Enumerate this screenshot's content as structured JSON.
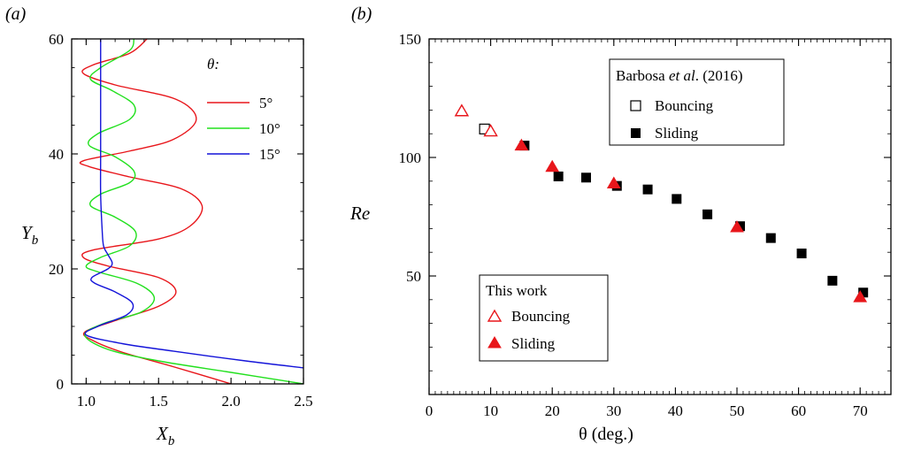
{
  "chart_data": [
    {
      "type": "line",
      "panel_label": "(a)",
      "xlabel": "X",
      "xlabel_sub": "b",
      "ylabel": "Y",
      "ylabel_sub": "b",
      "xlim": [
        0.9,
        2.5
      ],
      "ylim": [
        0,
        60
      ],
      "xticks": [
        "1.0",
        "1.5",
        "2.0",
        "2.5"
      ],
      "yticks": [
        "0",
        "20",
        "40",
        "60"
      ],
      "legend_title": "θ:",
      "legend_position": "top-right",
      "series": [
        {
          "name": "5°",
          "color": "#e8161b",
          "points": [
            [
              2.0,
              0
            ],
            [
              1.6,
              3
            ],
            [
              1.25,
              5.5
            ],
            [
              1.05,
              7.5
            ],
            [
              0.99,
              9
            ],
            [
              1.2,
              11
            ],
            [
              1.5,
              13.5
            ],
            [
              1.62,
              16
            ],
            [
              1.5,
              18.5
            ],
            [
              1.15,
              20.5
            ],
            [
              0.98,
              22
            ],
            [
              1.05,
              23.3
            ],
            [
              1.5,
              25.2
            ],
            [
              1.72,
              27.5
            ],
            [
              1.8,
              31
            ],
            [
              1.65,
              34
            ],
            [
              1.3,
              36
            ],
            [
              1.02,
              37.8
            ],
            [
              0.98,
              38.8
            ],
            [
              1.3,
              40.5
            ],
            [
              1.6,
              42.5
            ],
            [
              1.76,
              46
            ],
            [
              1.62,
              49.5
            ],
            [
              1.2,
              52
            ],
            [
              0.98,
              54
            ],
            [
              1.05,
              55.5
            ],
            [
              1.3,
              57.5
            ],
            [
              1.42,
              60
            ]
          ]
        },
        {
          "name": "10°",
          "color": "#22e01e",
          "points": [
            [
              2.5,
              0
            ],
            [
              2.0,
              2
            ],
            [
              1.5,
              4
            ],
            [
              1.15,
              6
            ],
            [
              0.99,
              8.5
            ],
            [
              1.12,
              10.5
            ],
            [
              1.38,
              12.5
            ],
            [
              1.47,
              15
            ],
            [
              1.35,
              17.5
            ],
            [
              1.08,
              19.5
            ],
            [
              1.0,
              20.5
            ],
            [
              1.1,
              22
            ],
            [
              1.3,
              24
            ],
            [
              1.34,
              26.5
            ],
            [
              1.2,
              29
            ],
            [
              1.03,
              31
            ],
            [
              1.1,
              33
            ],
            [
              1.3,
              35
            ],
            [
              1.33,
              37
            ],
            [
              1.2,
              39.5
            ],
            [
              1.02,
              41.5
            ],
            [
              1.08,
              43.5
            ],
            [
              1.3,
              46
            ],
            [
              1.33,
              48.5
            ],
            [
              1.18,
              51
            ],
            [
              1.03,
              53
            ],
            [
              1.1,
              55
            ],
            [
              1.3,
              58
            ],
            [
              1.33,
              60
            ]
          ]
        },
        {
          "name": "15°",
          "color": "#1414d9",
          "points": [
            [
              2.5,
              2.8
            ],
            [
              2.1,
              4
            ],
            [
              1.6,
              5.7
            ],
            [
              1.25,
              7
            ],
            [
              1.0,
              8.5
            ],
            [
              1.08,
              10
            ],
            [
              1.28,
              12
            ],
            [
              1.32,
              14
            ],
            [
              1.2,
              16
            ],
            [
              1.06,
              17.5
            ],
            [
              1.04,
              18.5
            ],
            [
              1.15,
              20
            ],
            [
              1.18,
              21
            ],
            [
              1.15,
              22.5
            ],
            [
              1.12,
              24
            ],
            [
              1.11,
              27
            ],
            [
              1.1,
              33
            ],
            [
              1.1,
              40
            ],
            [
              1.1,
              50
            ],
            [
              1.1,
              60
            ]
          ]
        }
      ]
    },
    {
      "type": "scatter",
      "panel_label": "(b)",
      "xlabel": "θ (deg.)",
      "ylabel": "Re",
      "xlim": [
        0,
        75
      ],
      "ylim": [
        0,
        150
      ],
      "xticks": [
        "0",
        "10",
        "20",
        "30",
        "40",
        "50",
        "60",
        "70"
      ],
      "yticks": [
        "50",
        "100",
        "150"
      ],
      "legend_barbosa": {
        "title_prefix": "Barbosa ",
        "title_italic": "et al",
        "title_suffix": ". (2016)",
        "entries": [
          "Bouncing",
          "Sliding"
        ]
      },
      "legend_thiswork": {
        "title": "This work",
        "entries": [
          "Bouncing",
          "Sliding"
        ]
      },
      "series": [
        {
          "name": "Barbosa et al. (2016) Bouncing",
          "marker": "open-square",
          "color": "#000000",
          "points": [
            [
              9,
              112
            ]
          ]
        },
        {
          "name": "Barbosa et al. (2016) Sliding",
          "marker": "filled-square",
          "color": "#000000",
          "points": [
            [
              15.5,
              105
            ],
            [
              21,
              92
            ],
            [
              25.5,
              91.5
            ],
            [
              30.5,
              88
            ],
            [
              35.5,
              86.5
            ],
            [
              40.2,
              82.5
            ],
            [
              45.2,
              76
            ],
            [
              50.5,
              71
            ],
            [
              55.5,
              66
            ],
            [
              60.5,
              59.5
            ],
            [
              65.5,
              48
            ],
            [
              70.5,
              43
            ]
          ]
        },
        {
          "name": "This work Bouncing",
          "marker": "open-triangle",
          "color": "#e8161b",
          "points": [
            [
              5.3,
              119.5
            ],
            [
              10,
              111
            ]
          ]
        },
        {
          "name": "This work Sliding",
          "marker": "filled-triangle",
          "color": "#e8161b",
          "points": [
            [
              15,
              105
            ],
            [
              20,
              96
            ],
            [
              30,
              89
            ],
            [
              50,
              70.5
            ],
            [
              70,
              41
            ]
          ]
        }
      ]
    }
  ]
}
